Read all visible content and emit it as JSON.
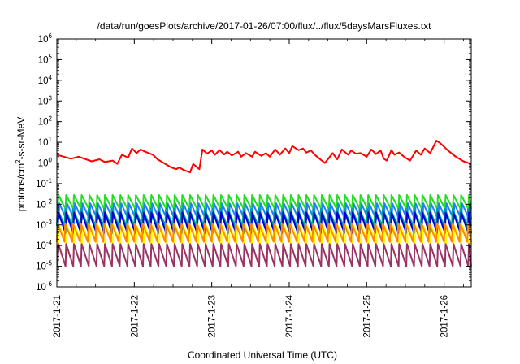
{
  "chart_data": {
    "type": "line",
    "title": "/data/run/goesPlots/archive/2017-01-26/07:00/flux/../flux/5daysMarsFluxes.txt",
    "xlabel": "Coordinated Universal Time (UTC)",
    "ylabel": {
      "prefix": "protons/cm",
      "sup": "2",
      "suffix": "-s-sr-MeV"
    },
    "yscale": "log",
    "ylim": [
      1e-06,
      1000000.0
    ],
    "xlim": [
      0,
      5.35
    ],
    "x_unit": "days since 2017-01-21 00:00 UTC",
    "grid": false,
    "legend": "none",
    "y_ticks": [
      {
        "base": "10",
        "exp": "6"
      },
      {
        "base": "10",
        "exp": "5"
      },
      {
        "base": "10",
        "exp": "4"
      },
      {
        "base": "10",
        "exp": "3"
      },
      {
        "base": "10",
        "exp": "2"
      },
      {
        "base": "10",
        "exp": "1"
      },
      {
        "base": "10",
        "exp": "0"
      },
      {
        "base": "10",
        "exp": "-1"
      },
      {
        "base": "10",
        "exp": "-2"
      },
      {
        "base": "10",
        "exp": "-3"
      },
      {
        "base": "10",
        "exp": "-4"
      },
      {
        "base": "10",
        "exp": "-5"
      },
      {
        "base": "10",
        "exp": "-6"
      }
    ],
    "x_ticks": [
      "2017-1-21",
      "2017-1-22",
      "2017-1-23",
      "2017-1-24",
      "2017-1-25",
      "2017-1-26"
    ],
    "series": [
      {
        "color": "#ff0000",
        "x": [
          0,
          0.18,
          0.28,
          0.45,
          0.55,
          0.62,
          0.72,
          0.78,
          0.84,
          0.92,
          0.97,
          1.03,
          1.08,
          1.14,
          1.24,
          1.3,
          1.36,
          1.42,
          1.48,
          1.54,
          1.58,
          1.64,
          1.72,
          1.76,
          1.84,
          1.88,
          1.94,
          2.0,
          2.04,
          2.1,
          2.16,
          2.2,
          2.26,
          2.34,
          2.38,
          2.44,
          2.52,
          2.56,
          2.64,
          2.7,
          2.75,
          2.82,
          2.88,
          2.95,
          3.0,
          3.04,
          3.12,
          3.18,
          3.22,
          3.28,
          3.34,
          3.4,
          3.46,
          3.5,
          3.56,
          3.62,
          3.68,
          3.76,
          3.8,
          3.86,
          3.92,
          4.0,
          4.06,
          4.12,
          4.18,
          4.22,
          4.26,
          4.32,
          4.36,
          4.42,
          4.48,
          4.52,
          4.56,
          4.64,
          4.7,
          4.75,
          4.82,
          4.9,
          4.95,
          5.05,
          5.15,
          5.25,
          5.35
        ],
        "y": [
          2.5,
          1.6,
          2.0,
          1.2,
          1.5,
          1.1,
          1.3,
          0.9,
          2.5,
          1.8,
          5.0,
          3.0,
          4.5,
          3.5,
          2.5,
          1.5,
          1.1,
          0.8,
          0.6,
          0.5,
          0.6,
          0.45,
          0.35,
          0.9,
          0.5,
          4.5,
          2.8,
          4.0,
          2.5,
          4.2,
          2.6,
          3.5,
          2.3,
          3.5,
          2.0,
          3.0,
          2.0,
          3.5,
          2.2,
          3.0,
          2.0,
          4.5,
          2.5,
          5.0,
          3.0,
          6.5,
          4.2,
          5.0,
          3.2,
          4.0,
          2.3,
          1.5,
          1.0,
          1.5,
          3.0,
          1.5,
          4.5,
          2.5,
          4.0,
          2.8,
          3.0,
          2.0,
          4.5,
          2.7,
          4.0,
          1.6,
          1.3,
          4.2,
          2.5,
          3.2,
          2.0,
          1.6,
          1.3,
          4.0,
          2.5,
          5.0,
          3.0,
          12.0,
          9.0,
          4.0,
          2.0,
          1.2,
          0.9
        ]
      },
      {
        "color": "#22dd22",
        "pulse_period": 0.1,
        "peak": 0.028,
        "min": 0.006
      },
      {
        "color": "#1e7fff",
        "pulse_period": 0.1,
        "peak": 0.011,
        "min": 0.0018
      },
      {
        "color": "#00a0a0",
        "pulse_period": 0.1,
        "peak": 0.006,
        "min": 0.0009
      },
      {
        "color": "#0000cc",
        "pulse_period": 0.1,
        "peak": 0.004,
        "min": 0.0004
      },
      {
        "color": "#ffff00",
        "pulse_period": 0.1,
        "peak": 0.0009,
        "min": 0.00012
      },
      {
        "color": "#ff8800",
        "pulse_period": 0.1,
        "peak": 0.0012,
        "min": 0.00015
      },
      {
        "color": "#993366",
        "pulse_period": 0.1,
        "peak": 0.00012,
        "min": 1e-05
      }
    ]
  }
}
